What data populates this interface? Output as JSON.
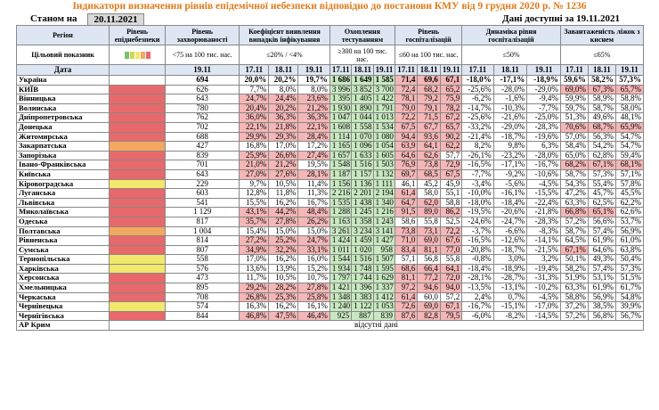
{
  "title": "Індикатори визначення рівнів епідемічної небезпеки відповідно до постанови КМУ від 9 грудня 2020 р. № 1236",
  "as_of_label": "Станом на",
  "as_of_date": "20.11.2021",
  "data_available": "Дані доступні за 19.11.2021",
  "headers": {
    "region": "Регіон",
    "indicator": "Цільовий показник",
    "date": "Дата",
    "level": "Рівень епіднебезпеки",
    "incidence": "Рівень захворюваності",
    "detection": "Коефіцієнт виявлення випадків інфікування",
    "testing": "Охоплення тестуванням",
    "hosp": "Рівень госпіталізацій",
    "hosp_dyn": "Динаміка рівня госпіталізацій",
    "oxygen": "Завантаженість ліжок з киснем"
  },
  "targets": {
    "incidence": "<75 на 100 тис. нас.",
    "detection": "≤20% / <4%",
    "testing": "≥300 на 100 тис. нас.",
    "hosp": "≤60 на 100 тис. нас.",
    "hosp_dyn": "≤50%",
    "oxygen": "≤65%"
  },
  "dates": {
    "incidence": "19.11",
    "d1": "17.11",
    "d2": "18.11",
    "d3": "19.11"
  },
  "ukraine": {
    "name": "Україна",
    "inc": "694",
    "det": [
      "20,0%",
      "20,2%",
      "19,7%"
    ],
    "test": [
      "1 686",
      "1 649",
      "1 585"
    ],
    "hosp": [
      "71,4",
      "69,6",
      "67,1"
    ],
    "dyn": [
      "-18,0%",
      "-17,1%",
      "-18,9%"
    ],
    "oxy": [
      "59,6%",
      "58,2%",
      "57,3%"
    ]
  },
  "rows": [
    {
      "name": "КИЇВ",
      "lvl": "red",
      "inc": "626",
      "det": [
        "7,7%",
        "8,0%",
        "8,0%"
      ],
      "test": [
        "3 996",
        "3 852",
        "3 700"
      ],
      "hosp": [
        "72,4",
        "68,2",
        "65,2"
      ],
      "dyn": [
        "-25,6%",
        "-28,0%",
        "-29,0%"
      ],
      "oxy": [
        "69,0%",
        "67,3%",
        "65,7%"
      ]
    },
    {
      "name": "Вінницька",
      "lvl": "red",
      "inc": "643",
      "det": [
        "24,7%",
        "24,4%",
        "23,6%"
      ],
      "test": [
        "1 395",
        "1 405",
        "1 422"
      ],
      "hosp": [
        "78,1",
        "79,2",
        "75,9"
      ],
      "dyn": [
        "-6,2%",
        "-1,6%",
        "-9,4%"
      ],
      "oxy": [
        "59,9%",
        "58,9%",
        "58,8%"
      ]
    },
    {
      "name": "Волинська",
      "lvl": "red",
      "inc": "780",
      "det": [
        "20,4%",
        "20,2%",
        "21,2%"
      ],
      "test": [
        "1 930",
        "1 890",
        "1 791"
      ],
      "hosp": [
        "79,0",
        "79,1",
        "78,2"
      ],
      "dyn": [
        "-14,7%",
        "-10,3%",
        "-7,7%"
      ],
      "oxy": [
        "59,7%",
        "58,7%",
        "58,0%"
      ]
    },
    {
      "name": "Дніпропетровська",
      "lvl": "red",
      "inc": "762",
      "det": [
        "36,0%",
        "36,3%",
        "36,3%"
      ],
      "test": [
        "1 047",
        "1 044",
        "1 013"
      ],
      "hosp": [
        "72,2",
        "71,5",
        "67,2"
      ],
      "dyn": [
        "-25,6%",
        "-21,6%",
        "-25,0%"
      ],
      "oxy": [
        "51,3%",
        "49,6%",
        "48,1%"
      ]
    },
    {
      "name": "Донецька",
      "lvl": "red",
      "inc": "702",
      "det": [
        "22,1%",
        "21,8%",
        "22,1%"
      ],
      "test": [
        "1 608",
        "1 558",
        "1 534"
      ],
      "hosp": [
        "67,5",
        "67,7",
        "65,7"
      ],
      "dyn": [
        "-33,2%",
        "-29,0%",
        "-28,3%"
      ],
      "oxy": [
        "70,6%",
        "68,7%",
        "65,9%"
      ]
    },
    {
      "name": "Житомирська",
      "lvl": "red",
      "inc": "688",
      "det": [
        "29,9%",
        "29,3%",
        "28,4%"
      ],
      "test": [
        "1 114",
        "1 070",
        "1 080"
      ],
      "hosp": [
        "94,4",
        "93,6",
        "90,2"
      ],
      "dyn": [
        "-21,4%",
        "-18,7%",
        "-19,6%"
      ],
      "oxy": [
        "57,0%",
        "56,3%",
        "54,7%"
      ]
    },
    {
      "name": "Закарпатська",
      "lvl": "org",
      "inc": "427",
      "det": [
        "16,8%",
        "17,0%",
        "17,2%"
      ],
      "test": [
        "1 165",
        "1 096",
        "1 054"
      ],
      "hosp": [
        "63,9",
        "64,1",
        "62,2"
      ],
      "dyn": [
        "8,2%",
        "9,8%",
        "6,3%"
      ],
      "oxy": [
        "58,4%",
        "54,2%",
        "54,7%"
      ]
    },
    {
      "name": "Запорізька",
      "lvl": "red",
      "inc": "839",
      "det": [
        "25,9%",
        "26,6%",
        "27,4%"
      ],
      "test": [
        "1 657",
        "1 633",
        "1 605"
      ],
      "hosp": [
        "64,6",
        "62,6",
        "57,7"
      ],
      "dyn": [
        "-26,1%",
        "-23,2%",
        "-28,0%"
      ],
      "oxy": [
        "65,0%",
        "62,8%",
        "59,4%"
      ]
    },
    {
      "name": "Івано-Франківська",
      "lvl": "red",
      "inc": "701",
      "det": [
        "21,0%",
        "21,2%",
        "19,5%"
      ],
      "test": [
        "1 548",
        "1 516",
        "1 503"
      ],
      "hosp": [
        "76,9",
        "73,8",
        "72,9"
      ],
      "dyn": [
        "-16,5%",
        "-17,1%",
        "-16,7%"
      ],
      "oxy": [
        "68,2%",
        "67,1%",
        "68,1%"
      ]
    },
    {
      "name": "Київська",
      "lvl": "red",
      "inc": "643",
      "det": [
        "27,0%",
        "27,6%",
        "28,1%"
      ],
      "test": [
        "1 187",
        "1 157",
        "1 132"
      ],
      "hosp": [
        "69,7",
        "68,5",
        "67,5"
      ],
      "dyn": [
        "-7,7%",
        "-9,2%",
        "-10,6%"
      ],
      "oxy": [
        "58,7%",
        "57,3%",
        "57,1%"
      ]
    },
    {
      "name": "Кіровоградська",
      "lvl": "yel",
      "inc": "229",
      "det": [
        "9,7%",
        "10,5%",
        "11,4%"
      ],
      "test": [
        "1 156",
        "1 136",
        "1 111"
      ],
      "hosp": [
        "46,1",
        "45,2",
        "45,9"
      ],
      "dyn": [
        "-3,4%",
        "-5,6%",
        "-4,5%"
      ],
      "oxy": [
        "54,3%",
        "55,4%",
        "57,8%"
      ]
    },
    {
      "name": "Луганська",
      "lvl": "red",
      "inc": "603",
      "det": [
        "12,8%",
        "11,8%",
        "11,3%"
      ],
      "test": [
        "2 216",
        "2 201",
        "2 194"
      ],
      "hosp": [
        "61,4",
        "58,0",
        "55,1"
      ],
      "dyn": [
        "-10,0%",
        "-16,1%",
        "-15,5%"
      ],
      "oxy": [
        "47,2%",
        "45,7%",
        "45,5%"
      ]
    },
    {
      "name": "Львівська",
      "lvl": "red",
      "inc": "541",
      "det": [
        "15,5%",
        "16,2%",
        "16,7%"
      ],
      "test": [
        "1 535",
        "1 438",
        "1 340"
      ],
      "hosp": [
        "64,7",
        "62,0",
        "58,8"
      ],
      "dyn": [
        "-18,0%",
        "-18,4%",
        "-22,4%"
      ],
      "oxy": [
        "63,3%",
        "62,5%",
        "62,2%"
      ]
    },
    {
      "name": "Миколаївська",
      "lvl": "red",
      "inc": "1 129",
      "det": [
        "43,1%",
        "44,2%",
        "48,4%"
      ],
      "test": [
        "1 288",
        "1 245",
        "1 216"
      ],
      "hosp": [
        "91,5",
        "89,0",
        "86,2"
      ],
      "dyn": [
        "-19,5%",
        "-20,6%",
        "-21,8%"
      ],
      "oxy": [
        "66,8%",
        "65,1%",
        "62,6%"
      ]
    },
    {
      "name": "Одеська",
      "lvl": "red",
      "inc": "817",
      "det": [
        "35,7%",
        "27,8%",
        "26,2%"
      ],
      "test": [
        "1 163",
        "1 358",
        "1 243"
      ],
      "hosp": [
        "58,6",
        "55,8",
        "52,5"
      ],
      "dyn": [
        "-24,6%",
        "-24,7%",
        "-28,3%"
      ],
      "oxy": [
        "57,2%",
        "56,6%",
        "53,7%"
      ]
    },
    {
      "name": "Полтавська",
      "lvl": "org",
      "inc": "1 004",
      "det": [
        "15,4%",
        "15,0%",
        "15,0%"
      ],
      "test": [
        "3 261",
        "3 234",
        "3 141"
      ],
      "hosp": [
        "73,8",
        "73,1",
        "72,2"
      ],
      "dyn": [
        "-3,7%",
        "-6,6%",
        "-8,3%"
      ],
      "oxy": [
        "58,7%",
        "57,4%",
        "56,9%"
      ]
    },
    {
      "name": "Рівненська",
      "lvl": "red",
      "inc": "814",
      "det": [
        "27,2%",
        "25,2%",
        "24,7%"
      ],
      "test": [
        "1 424",
        "1 459",
        "1 427"
      ],
      "hosp": [
        "71,0",
        "69,0",
        "67,6"
      ],
      "dyn": [
        "-16,5%",
        "-12,6%",
        "-14,1%"
      ],
      "oxy": [
        "64,5%",
        "61,9%",
        "61,0%"
      ]
    },
    {
      "name": "Сумська",
      "lvl": "red",
      "inc": "807",
      "det": [
        "34,9%",
        "32,2%",
        "33,1%"
      ],
      "test": [
        "1 011",
        "1 020",
        "958"
      ],
      "hosp": [
        "83,4",
        "81,1",
        "77,0"
      ],
      "dyn": [
        "-20,8%",
        "-18,7%",
        "-21,5%"
      ],
      "oxy": [
        "67,1%",
        "64,6%",
        "63,8%"
      ]
    },
    {
      "name": "Тернопільська",
      "lvl": "yel",
      "inc": "558",
      "det": [
        "17,0%",
        "16,2%",
        "16,0%"
      ],
      "test": [
        "1 544",
        "1 516",
        "1 507"
      ],
      "hosp": [
        "57,1",
        "56,8",
        "55,8"
      ],
      "dyn": [
        "-0,8%",
        "3,0%",
        "3,2%"
      ],
      "oxy": [
        "50,1%",
        "49,3%",
        "50,4%"
      ]
    },
    {
      "name": "Харківська",
      "lvl": "yel",
      "inc": "576",
      "det": [
        "13,6%",
        "13,9%",
        "15,2%"
      ],
      "test": [
        "1 934",
        "1 748",
        "1 595"
      ],
      "hosp": [
        "68,6",
        "66,4",
        "64,1"
      ],
      "dyn": [
        "-18,4%",
        "-18,9%",
        "-19,4%"
      ],
      "oxy": [
        "58,2%",
        "57,4%",
        "57,3%"
      ]
    },
    {
      "name": "Херсонська",
      "lvl": "red",
      "inc": "473",
      "det": [
        "11,7%",
        "10,5%",
        "10,7%"
      ],
      "test": [
        "1 797",
        "1 744",
        "1 629"
      ],
      "hosp": [
        "81,1",
        "77,2",
        "72,0"
      ],
      "dyn": [
        "-28,1%",
        "-28,7%",
        "-31,3%"
      ],
      "oxy": [
        "51,9%",
        "53,1%",
        "51,5%"
      ]
    },
    {
      "name": "Хмельницька",
      "lvl": "red",
      "inc": "895",
      "det": [
        "29,2%",
        "28,2%",
        "27,8%"
      ],
      "test": [
        "1 421",
        "1 396",
        "1 337"
      ],
      "hosp": [
        "97,2",
        "94,6",
        "94,0"
      ],
      "dyn": [
        "-13,5%",
        "-13,1%",
        "-10,2%"
      ],
      "oxy": [
        "63,3%",
        "61,9%",
        "61,7%"
      ]
    },
    {
      "name": "Черкаська",
      "lvl": "red",
      "inc": "708",
      "det": [
        "26,8%",
        "25,3%",
        "25,8%"
      ],
      "test": [
        "1 348",
        "1 383",
        "1 412"
      ],
      "hosp": [
        "61,4",
        "60,0",
        "57,2"
      ],
      "dyn": [
        "2,4%",
        "0,7%",
        "-4,5%"
      ],
      "oxy": [
        "58,8%",
        "56,9%",
        "54,8%"
      ]
    },
    {
      "name": "Чернівецька",
      "lvl": "yel",
      "inc": "574",
      "det": [
        "16,3%",
        "16,2%",
        "16,1%"
      ],
      "test": [
        "1 240",
        "1 122",
        "1 053"
      ],
      "hosp": [
        "72,6",
        "69,0",
        "67,1"
      ],
      "dyn": [
        "-16,7%",
        "-15,1%",
        "-17,0%"
      ],
      "oxy": [
        "37,2%",
        "38,5%",
        "39,9%"
      ]
    },
    {
      "name": "Чернігівська",
      "lvl": "red",
      "inc": "844",
      "det": [
        "46,8%",
        "47,5%",
        "46,4%"
      ],
      "test": [
        "925",
        "887",
        "839"
      ],
      "hosp": [
        "87,6",
        "82,8",
        "79,5"
      ],
      "dyn": [
        "-6,0%",
        "-8,2%",
        "-14,5%"
      ],
      "oxy": [
        "57,2%",
        "56,8%",
        "56,7%"
      ]
    }
  ],
  "crimea": {
    "name": "АР Крим",
    "note": "відсутні дані"
  },
  "level_legend": [
    "#76c26a",
    "#c8d95a",
    "#f2e86c",
    "#f2a95e",
    "#e8696b"
  ]
}
